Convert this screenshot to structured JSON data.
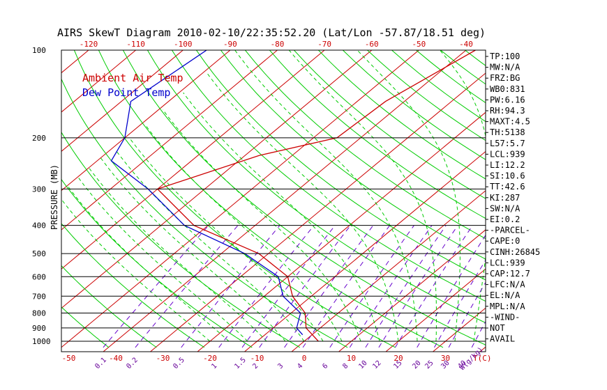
{
  "title": "AIRS SkewT Diagram 2010-02-10/22:35:52.20 (Lat/Lon -57.87/18.51 deg)",
  "legend": {
    "ambient": "Ambient Air Temp",
    "dewpoint": "Dew Point Temp"
  },
  "colors": {
    "ambient": "#cc0000",
    "dewpoint": "#0000cc",
    "dry_adiabat": "#00cc00",
    "moist_adiabat": "#00cc00",
    "mixing_ratio": "#6600cc",
    "isotherm": "#cc0000",
    "isobar": "#000000",
    "top_axis": "#cc0000",
    "bottom_axis": "#cc0000",
    "mixing_axis": "#660099",
    "text": "#000000"
  },
  "chart_data": {
    "type": "line",
    "title": "AIRS SkewT Diagram 2010-02-10/22:35:52.20 (Lat/Lon -57.87/18.51 deg)",
    "ylabel": "PRESSURE (MB)",
    "xlabel": "T(C)",
    "mixing_ratio_label": "W(g/kg)",
    "y_scale": "log",
    "ylim": [
      1050,
      100
    ],
    "pressure_ticks": [
      "100",
      "200",
      "300",
      "400",
      "500",
      "600",
      "700",
      "800",
      "900",
      "1000"
    ],
    "pressure_values": [
      100,
      200,
      300,
      400,
      500,
      600,
      700,
      800,
      900,
      1000
    ],
    "top_temp_ticks": [
      "-120",
      "-110",
      "-100",
      "-90",
      "-80",
      "-70",
      "-60",
      "-50",
      "-40"
    ],
    "bottom_temp_ticks": [
      "-50",
      "-40",
      "-30",
      "-20",
      "-10",
      "0",
      "10",
      "20",
      "30"
    ],
    "mixing_ratio_ticks": [
      "0.1",
      "0.2",
      "0.5",
      "1",
      "1.5",
      "2",
      "3",
      "4",
      "6",
      "8",
      "10",
      "12",
      "15",
      "20",
      "25",
      "30",
      "40"
    ],
    "series": [
      {
        "name": "Ambient Air Temp",
        "points": [
          [
            100,
            -38
          ],
          [
            150,
            -44
          ],
          [
            200,
            -45
          ],
          [
            230,
            -57
          ],
          [
            300,
            -70
          ],
          [
            400,
            -53
          ],
          [
            500,
            -32
          ],
          [
            600,
            -20
          ],
          [
            700,
            -14
          ],
          [
            800,
            -7
          ],
          [
            900,
            -3
          ],
          [
            1000,
            3
          ]
        ]
      },
      {
        "name": "Dew Point Temp",
        "points": [
          [
            100,
            -95
          ],
          [
            150,
            -98
          ],
          [
            200,
            -90
          ],
          [
            240,
            -87
          ],
          [
            300,
            -72
          ],
          [
            400,
            -55
          ],
          [
            500,
            -35
          ],
          [
            600,
            -22
          ],
          [
            700,
            -16
          ],
          [
            800,
            -8
          ],
          [
            900,
            -5
          ],
          [
            950,
            -2
          ]
        ]
      }
    ]
  },
  "indices": [
    "TP:100",
    "MW:N/A",
    "FRZ:BG",
    "WB0:831",
    "PW:6.16",
    "RH:94.3",
    "MAXT:4.5",
    "TH:5138",
    "L57:5.7",
    "LCL:939",
    "LI:12.2",
    "SI:10.6",
    "TT:42.6",
    "KI:287",
    "SW:N/A",
    "EI:0.2",
    "-PARCEL-",
    "CAPE:0",
    "CINH:26845",
    "LCL:939",
    "CAP:12.7",
    "LFC:N/A",
    "EL:N/A",
    "MPL:N/A",
    "-WIND-",
    "NOT",
    "AVAIL"
  ]
}
